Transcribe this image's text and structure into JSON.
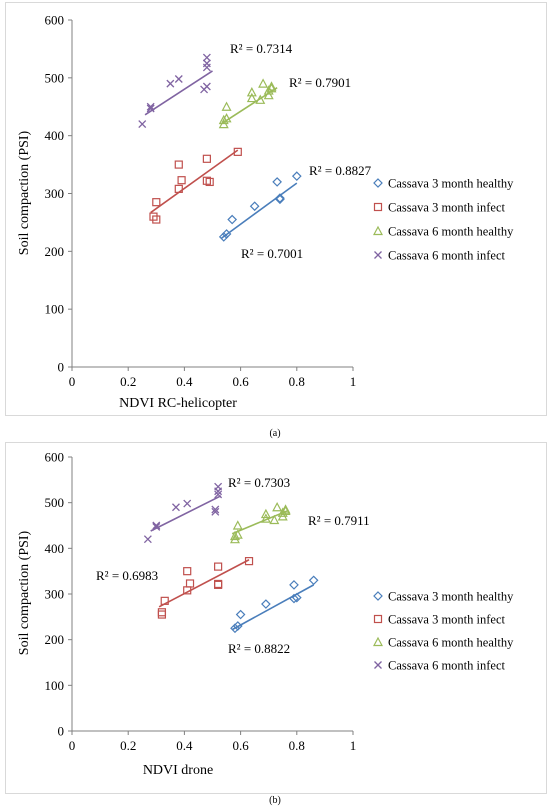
{
  "charts": [
    {
      "caption": "(a)",
      "chart_data": {
        "type": "scatter",
        "xlabel": "NDVI RC-helicopter",
        "ylabel": "Soil compaction (PSI)",
        "xlim": [
          0,
          1
        ],
        "ylim": [
          0,
          600
        ],
        "xticks": [
          0,
          0.2,
          0.4,
          0.6,
          0.8,
          1
        ],
        "xtick_labels": [
          "0",
          "0.2",
          "0.4",
          "0.6",
          "0.8",
          "1"
        ],
        "yticks": [
          0,
          100,
          200,
          300,
          400,
          500,
          600
        ],
        "ytick_labels": [
          "0",
          "100",
          "200",
          "300",
          "400",
          "500",
          "600"
        ],
        "grid": false,
        "legend_position": "right",
        "series": [
          {
            "name": "Cassava 3 month healthy",
            "marker": "diamond",
            "color": "#4a7ebb",
            "x": [
              0.54,
              0.55,
              0.57,
              0.65,
              0.73,
              0.74,
              0.74,
              0.8
            ],
            "y": [
              225,
              230,
              255,
              278,
              320,
              290,
              292,
              330
            ],
            "trend": [
              [
                0.53,
                222
              ],
              [
                0.8,
                318
              ]
            ],
            "r2_label": "R² = 0.8827"
          },
          {
            "name": "Cassava 3 month infect",
            "marker": "square",
            "color": "#c0504d",
            "x": [
              0.29,
              0.3,
              0.3,
              0.38,
              0.38,
              0.39,
              0.48,
              0.48,
              0.49,
              0.59
            ],
            "y": [
              260,
              255,
              285,
              350,
              308,
              323,
              360,
              322,
              320,
              372
            ],
            "trend": [
              [
                0.28,
                267
              ],
              [
                0.59,
                375
              ]
            ],
            "r2_label": "R² = 0.7001"
          },
          {
            "name": "Cassava 6 month healthy",
            "marker": "triangle",
            "color": "#9bbb59",
            "x": [
              0.54,
              0.54,
              0.55,
              0.55,
              0.64,
              0.64,
              0.67,
              0.68,
              0.7,
              0.7,
              0.71,
              0.71
            ],
            "y": [
              420,
              427,
              430,
              450,
              465,
              475,
              462,
              490,
              478,
              470,
              485,
              482
            ],
            "trend": [
              [
                0.53,
                420
              ],
              [
                0.73,
                483
              ]
            ],
            "r2_label": "R² = 0.7901"
          },
          {
            "name": "Cassava 6 month infect",
            "marker": "x",
            "color": "#8064a2",
            "x": [
              0.25,
              0.28,
              0.28,
              0.35,
              0.38,
              0.47,
              0.48,
              0.48,
              0.48,
              0.48
            ],
            "y": [
              420,
              447,
              450,
              490,
              498,
              480,
              485,
              518,
              525,
              535
            ],
            "trend": [
              [
                0.26,
                436
              ],
              [
                0.5,
                512
              ]
            ],
            "r2_label": "R² = 0.7314"
          }
        ]
      }
    },
    {
      "caption": "(b)",
      "chart_data": {
        "type": "scatter",
        "xlabel": "NDVI drone",
        "ylabel": "Soil compaction (PSI)",
        "xlim": [
          0,
          1
        ],
        "ylim": [
          0,
          600
        ],
        "xticks": [
          0,
          0.2,
          0.4,
          0.6,
          0.8,
          1
        ],
        "xtick_labels": [
          "0",
          "0.2",
          "0.4",
          "0.6",
          "0.8",
          "1"
        ],
        "yticks": [
          0,
          100,
          200,
          300,
          400,
          500,
          600
        ],
        "ytick_labels": [
          "0",
          "100",
          "200",
          "300",
          "400",
          "500",
          "600"
        ],
        "grid": false,
        "legend_position": "right",
        "series": [
          {
            "name": "Cassava 3 month healthy",
            "marker": "diamond",
            "color": "#4a7ebb",
            "x": [
              0.58,
              0.59,
              0.6,
              0.69,
              0.79,
              0.79,
              0.8,
              0.86
            ],
            "y": [
              225,
              230,
              255,
              278,
              320,
              290,
              292,
              330
            ],
            "trend": [
              [
                0.57,
                222
              ],
              [
                0.86,
                320
              ]
            ],
            "r2_label": "R² = 0.8822"
          },
          {
            "name": "Cassava 3 month infect",
            "marker": "square",
            "color": "#c0504d",
            "x": [
              0.32,
              0.32,
              0.33,
              0.41,
              0.41,
              0.42,
              0.52,
              0.52,
              0.52,
              0.63
            ],
            "y": [
              260,
              255,
              285,
              350,
              308,
              323,
              360,
              322,
              320,
              372
            ],
            "trend": [
              [
                0.31,
                272
              ],
              [
                0.63,
                375
              ]
            ],
            "r2_label": "R² = 0.6983"
          },
          {
            "name": "Cassava 6 month healthy",
            "marker": "triangle",
            "color": "#9bbb59",
            "x": [
              0.58,
              0.58,
              0.59,
              0.59,
              0.69,
              0.69,
              0.72,
              0.73,
              0.75,
              0.75,
              0.76,
              0.76
            ],
            "y": [
              420,
              427,
              430,
              450,
              465,
              475,
              462,
              490,
              478,
              470,
              485,
              482
            ],
            "trend": [
              [
                0.57,
                432
              ],
              [
                0.77,
                483
              ]
            ],
            "r2_label": "R² = 0.7911"
          },
          {
            "name": "Cassava 6 month infect",
            "marker": "x",
            "color": "#8064a2",
            "x": [
              0.27,
              0.3,
              0.3,
              0.37,
              0.41,
              0.51,
              0.51,
              0.52,
              0.52,
              0.52
            ],
            "y": [
              420,
              447,
              450,
              490,
              498,
              480,
              485,
              518,
              525,
              535
            ],
            "trend": [
              [
                0.28,
                438
              ],
              [
                0.53,
                515
              ]
            ],
            "r2_label": "R² = 0.7303"
          }
        ]
      }
    }
  ]
}
